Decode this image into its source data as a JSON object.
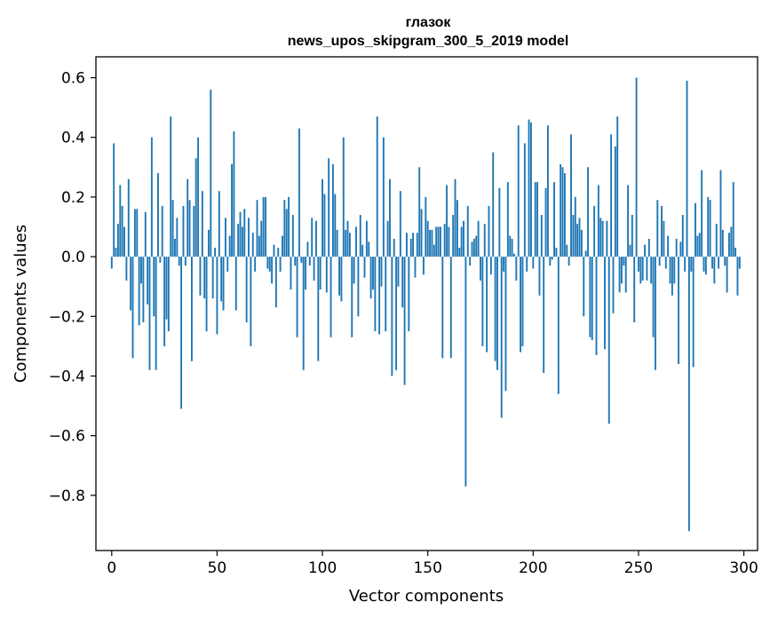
{
  "chart_data": {
    "type": "bar",
    "title": "глазок",
    "subtitle": "news_upos_skipgram_300_5_2019 model",
    "xlabel": "Vector components",
    "ylabel": "Components values",
    "xlim": [
      -7.5,
      306.5
    ],
    "ylim": [
      -0.985,
      0.67
    ],
    "xticks": [
      0,
      50,
      100,
      150,
      200,
      250,
      300
    ],
    "yticks": [
      -0.8,
      -0.6,
      -0.4,
      -0.2,
      0.0,
      0.2,
      0.4,
      0.6
    ],
    "xtick_labels": [
      "0",
      "50",
      "100",
      "150",
      "200",
      "250",
      "300"
    ],
    "ytick_labels": [
      "−0.8",
      "−0.6",
      "−0.4",
      "−0.2",
      "0.0",
      "0.2",
      "0.4",
      "0.6"
    ],
    "bar_color": "#1f77b4",
    "grid": false,
    "legend": false,
    "values": [
      -0.04,
      0.38,
      0.03,
      0.11,
      0.24,
      0.17,
      0.1,
      -0.08,
      0.26,
      -0.18,
      -0.34,
      0.16,
      0.16,
      -0.23,
      -0.09,
      -0.22,
      0.15,
      -0.16,
      -0.38,
      0.4,
      -0.2,
      -0.38,
      0.28,
      -0.02,
      0.17,
      -0.3,
      -0.21,
      -0.25,
      0.47,
      0.19,
      0.06,
      0.13,
      -0.03,
      -0.51,
      0.17,
      -0.03,
      0.26,
      0.19,
      -0.35,
      0.17,
      0.33,
      0.4,
      -0.13,
      0.22,
      -0.14,
      -0.25,
      0.09,
      0.56,
      -0.14,
      0.03,
      -0.26,
      0.22,
      -0.15,
      -0.18,
      0.13,
      -0.05,
      0.07,
      0.31,
      0.42,
      -0.18,
      0.11,
      0.15,
      0.1,
      0.16,
      -0.22,
      0.13,
      -0.3,
      0.08,
      -0.05,
      0.19,
      0.07,
      0.12,
      0.2,
      0.2,
      -0.04,
      -0.05,
      -0.09,
      0.04,
      -0.17,
      0.03,
      -0.05,
      0.07,
      0.19,
      0.16,
      0.2,
      -0.11,
      0.14,
      -0.03,
      -0.27,
      0.43,
      -0.02,
      -0.38,
      -0.11,
      0.05,
      -0.03,
      0.13,
      -0.08,
      0.12,
      -0.35,
      -0.11,
      0.26,
      0.21,
      -0.12,
      0.33,
      -0.27,
      0.31,
      0.21,
      0.09,
      -0.13,
      -0.15,
      0.4,
      0.09,
      0.12,
      0.08,
      -0.27,
      -0.09,
      0.1,
      -0.2,
      0.14,
      0.04,
      -0.07,
      0.12,
      0.05,
      -0.14,
      -0.11,
      -0.25,
      0.47,
      -0.26,
      -0.1,
      0.4,
      -0.25,
      0.12,
      0.26,
      -0.4,
      0.06,
      -0.38,
      -0.1,
      0.22,
      -0.17,
      -0.43,
      0.08,
      -0.25,
      0.06,
      0.08,
      -0.07,
      0.08,
      0.3,
      0.16,
      -0.06,
      0.2,
      0.12,
      0.09,
      0.09,
      0.04,
      0.1,
      0.1,
      0.1,
      -0.34,
      0.11,
      0.24,
      0.1,
      -0.34,
      0.14,
      0.26,
      0.19,
      0.03,
      0.1,
      0.12,
      -0.77,
      0.17,
      -0.03,
      0.05,
      0.06,
      0.07,
      0.12,
      -0.08,
      -0.3,
      0.11,
      -0.32,
      0.17,
      -0.06,
      0.35,
      -0.35,
      -0.38,
      0.23,
      -0.54,
      -0.05,
      -0.45,
      0.25,
      0.07,
      0.06,
      0.01,
      -0.08,
      0.44,
      -0.32,
      -0.3,
      0.38,
      -0.05,
      0.46,
      0.45,
      -0.04,
      0.25,
      0.25,
      -0.13,
      0.14,
      -0.39,
      0.23,
      0.44,
      -0.03,
      -0.01,
      0.25,
      0.03,
      -0.46,
      0.31,
      0.3,
      0.28,
      0.04,
      -0.03,
      0.41,
      0.14,
      0.2,
      0.11,
      0.13,
      0.09,
      -0.2,
      0.02,
      0.3,
      -0.27,
      -0.28,
      0.17,
      -0.33,
      0.24,
      0.13,
      0.12,
      -0.31,
      0.12,
      -0.56,
      0.41,
      -0.19,
      0.37,
      0.47,
      -0.12,
      -0.09,
      -0.03,
      -0.12,
      0.24,
      0.04,
      0.14,
      -0.22,
      0.6,
      -0.05,
      -0.09,
      -0.08,
      0.04,
      -0.08,
      0.06,
      -0.09,
      -0.27,
      -0.38,
      0.19,
      -0.03,
      0.17,
      0.12,
      -0.04,
      0.07,
      -0.09,
      -0.13,
      -0.09,
      0.06,
      -0.36,
      0.05,
      0.14,
      -0.05,
      0.59,
      -0.92,
      -0.05,
      -0.37,
      0.18,
      0.07,
      0.08,
      0.29,
      -0.05,
      -0.06,
      0.2,
      0.19,
      -0.04,
      -0.09,
      0.11,
      -0.04,
      0.29,
      0.09,
      -0.03,
      -0.12,
      0.08,
      0.1,
      0.25,
      0.03,
      -0.13,
      -0.04
    ]
  }
}
